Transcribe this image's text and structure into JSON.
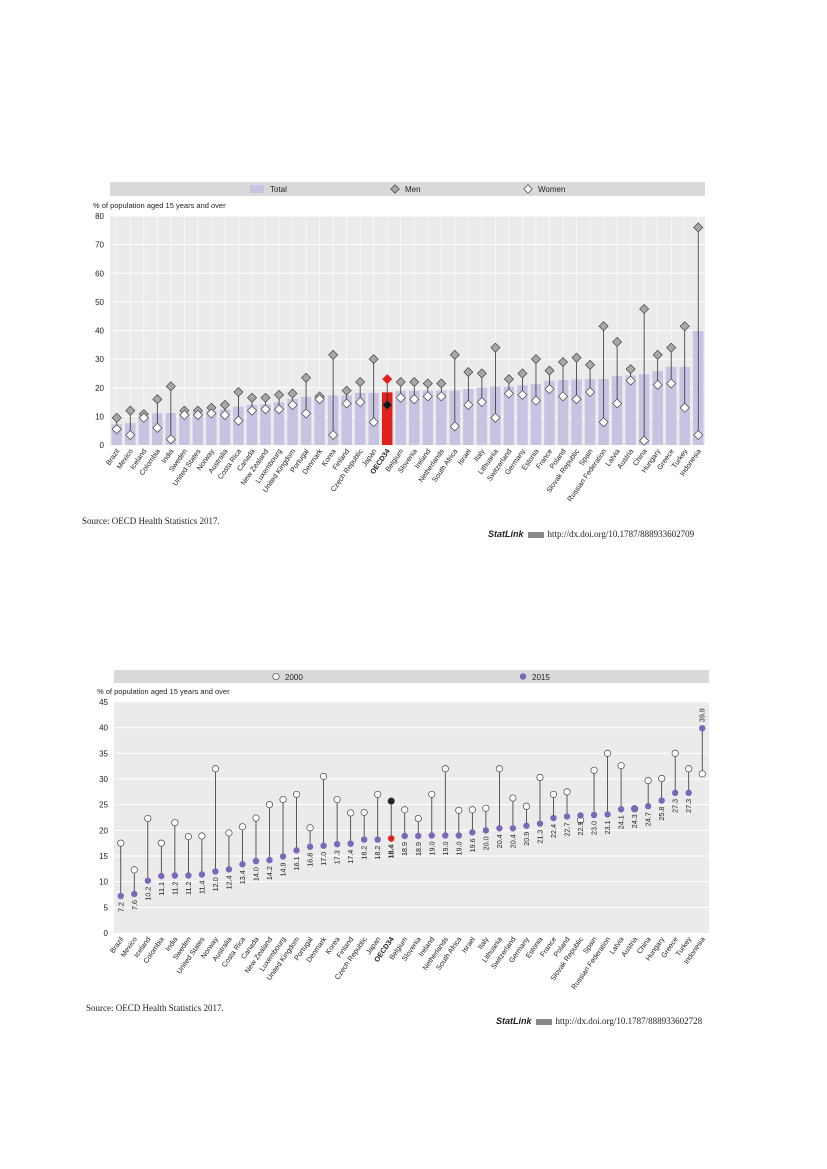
{
  "chart_data": [
    {
      "type": "bar",
      "legend": {
        "position": "top",
        "entries": [
          "Total",
          "Men",
          "Women"
        ]
      },
      "ylabel": "% of population aged 15 years and over",
      "ylim": [
        0,
        80
      ],
      "yticks": [
        0,
        10,
        20,
        30,
        40,
        50,
        60,
        70,
        80
      ],
      "grid": true,
      "highlight": "OECD34",
      "categories": [
        "Brazil",
        "Mexico",
        "Iceland",
        "Colombia",
        "India",
        "Sweden",
        "United States",
        "Norway",
        "Australia",
        "Costa Rica",
        "Canada",
        "New Zealand",
        "Luxembourg",
        "United Kingdom",
        "Portugal",
        "Denmark",
        "Korea",
        "Finland",
        "Czech Republic",
        "Japan",
        "OECD34",
        "Belgium",
        "Slovenia",
        "Ireland",
        "Netherlands",
        "South Africa",
        "Israel",
        "Italy",
        "Lithuania",
        "Switzerland",
        "Germany",
        "Estonia",
        "France",
        "Poland",
        "Slovak Republic",
        "Spain",
        "Russian Federation",
        "Latvia",
        "Austria",
        "China",
        "Hungary",
        "Greece",
        "Turkey",
        "Indonesia"
      ],
      "series": [
        {
          "name": "Total",
          "values": [
            7.2,
            7.6,
            10.2,
            11.1,
            11.2,
            11.2,
            11.4,
            12.0,
            12.4,
            13.4,
            14.0,
            14.2,
            14.9,
            16.1,
            16.8,
            17.0,
            17.3,
            17.4,
            18.2,
            18.2,
            18.4,
            18.9,
            18.9,
            19.0,
            19.0,
            19.0,
            19.6,
            20.0,
            20.4,
            20.4,
            20.9,
            21.3,
            22.4,
            22.7,
            22.9,
            23.0,
            23.1,
            24.1,
            24.3,
            24.7,
            25.8,
            27.3,
            27.3,
            39.9
          ]
        },
        {
          "name": "Men",
          "values": [
            9.5,
            12,
            10.8,
            16,
            20.5,
            12,
            12,
            13,
            14,
            18.5,
            16.5,
            16.5,
            17.5,
            18,
            23.5,
            17,
            31.5,
            19,
            22,
            30,
            23,
            22,
            22,
            21.5,
            21.5,
            31.5,
            25.5,
            25,
            34,
            23,
            25,
            30,
            26,
            29,
            30.5,
            28,
            41.5,
            36,
            26.5,
            47.5,
            31.5,
            34,
            41.5,
            76
          ]
        },
        {
          "name": "Women",
          "values": [
            5.5,
            3.5,
            9.5,
            6,
            2,
            10.5,
            10.5,
            11,
            10.5,
            8.5,
            12,
            12.5,
            12.5,
            14,
            11,
            16,
            3.5,
            14.5,
            15,
            8,
            14,
            16.5,
            16,
            17,
            17,
            6.5,
            14,
            15,
            9.5,
            18,
            17.5,
            15.5,
            19.5,
            17,
            16,
            18.5,
            8,
            14.5,
            22.5,
            1.5,
            21,
            21.5,
            13,
            3.5
          ]
        }
      ]
    },
    {
      "type": "scatter",
      "legend": {
        "position": "top",
        "entries": [
          "2000",
          "2015"
        ]
      },
      "ylabel": "% of population aged 15 years and over",
      "ylim": [
        0,
        45
      ],
      "yticks": [
        0,
        5,
        10,
        15,
        20,
        25,
        30,
        35,
        40,
        45
      ],
      "grid": true,
      "highlight": "OECD34",
      "categories": [
        "Brazil",
        "Mexico",
        "Iceland",
        "Colombia",
        "India",
        "Sweden",
        "United States",
        "Norway",
        "Australia",
        "Costa Rica",
        "Canada",
        "New Zealand",
        "Luxembourg",
        "United Kingdom",
        "Portugal",
        "Denmark",
        "Korea",
        "Finland",
        "Czech Republic",
        "Japan",
        "OECD34",
        "Belgium",
        "Slovenia",
        "Ireland",
        "Netherlands",
        "South Africa",
        "Israel",
        "Italy",
        "Lithuania",
        "Switzerland",
        "Germany",
        "Estonia",
        "France",
        "Poland",
        "Slovak Republic",
        "Spain",
        "Russian Federation",
        "Latvia",
        "Austria",
        "China",
        "Hungary",
        "Greece",
        "Turkey",
        "Indonesia"
      ],
      "series": [
        {
          "name": "2000",
          "values": [
            17.5,
            12.3,
            22.3,
            17.5,
            21.5,
            18.8,
            18.9,
            32,
            19.5,
            20.7,
            22.4,
            25,
            26,
            27,
            20.5,
            30.5,
            26,
            23.4,
            23.5,
            27,
            25.7,
            24,
            22.3,
            27,
            32,
            23.9,
            24,
            24.3,
            32,
            26.3,
            24.7,
            30.3,
            27,
            27.5,
            22,
            31.7,
            35,
            32.6,
            24.2,
            29.7,
            30.1,
            35,
            32,
            31
          ]
        },
        {
          "name": "2015",
          "values": [
            7.2,
            7.6,
            10.2,
            11.1,
            11.2,
            11.2,
            11.4,
            12.0,
            12.4,
            13.4,
            14.0,
            14.2,
            14.9,
            16.1,
            16.8,
            17.0,
            17.3,
            17.4,
            18.2,
            18.2,
            18.4,
            18.9,
            18.9,
            19.0,
            19.0,
            19.0,
            19.6,
            20.0,
            20.4,
            20.4,
            20.9,
            21.3,
            22.4,
            22.7,
            22.9,
            23.0,
            23.1,
            24.1,
            24.3,
            24.7,
            25.8,
            27.3,
            27.3,
            39.9
          ]
        }
      ],
      "value_labels": [
        "7.2",
        "7.6",
        "10.2",
        "11.1",
        "11.2",
        "11.2",
        "11.4",
        "12.0",
        "12.4",
        "13.4",
        "14.0",
        "14.2",
        "14.9",
        "16.1",
        "16.8",
        "17.0",
        "17.3",
        "17.4",
        "18.2",
        "18.2",
        "18.4",
        "18.9",
        "18.9",
        "19.0",
        "19.0",
        "19.0",
        "19.6",
        "20.0",
        "20.4",
        "20.4",
        "20.9",
        "21.3",
        "22.4",
        "22.7",
        "22.9",
        "23.0",
        "23.1",
        "24.1",
        "24.3",
        "24.7",
        "25.8",
        "27.3",
        "27.3",
        "39.9"
      ]
    }
  ],
  "footer1": {
    "source": "Source: OECD Health Statistics 2017.",
    "statlink_brand": "StatLink",
    "statlink_url": "http://dx.doi.org/10.1787/888933602709"
  },
  "footer2": {
    "source": "Source: OECD Health Statistics 2017.",
    "statlink_brand": "StatLink",
    "statlink_url": "http://dx.doi.org/10.1787/888933602728"
  },
  "colors": {
    "bar": "#c8c3e3",
    "highlight": "#e0201b",
    "dot2015": "#7b68b8",
    "grid_bg": "#ebebeb",
    "legend_bg": "#d9d9d9",
    "diamond": "#a8a8a8",
    "highlight_2000": "#222222"
  }
}
